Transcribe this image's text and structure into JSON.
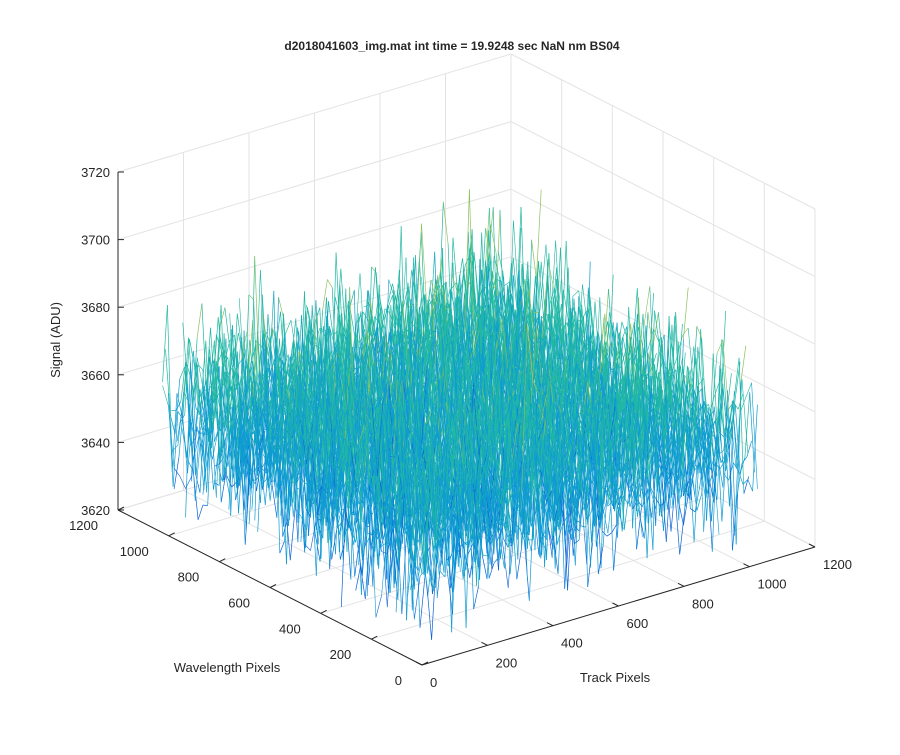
{
  "chart_data": {
    "type": "surface-3d",
    "title": "d2018041603_img.mat int time = 19.9248 sec  NaN nm BS04",
    "xlabel": "Track Pixels",
    "ylabel": "Wavelength Pixels",
    "zlabel": "Signal (ADU)",
    "xlim": [
      0,
      1200
    ],
    "ylim": [
      0,
      1200
    ],
    "zlim": [
      3620,
      3720
    ],
    "x_ticks": [
      "0",
      "200",
      "400",
      "600",
      "800",
      "1000",
      "1200"
    ],
    "y_ticks": [
      "0",
      "200",
      "400",
      "600",
      "800",
      "1000",
      "1200"
    ],
    "z_ticks": [
      "3620",
      "3640",
      "3660",
      "3680",
      "3700",
      "3720"
    ],
    "grid": true,
    "data_extent": {
      "x": [
        0,
        1024
      ],
      "y": [
        0,
        1024
      ]
    },
    "signal_summary": {
      "mean": 3657,
      "min": 3625,
      "max": 3712
    },
    "colormap": [
      "#0c62d8",
      "#0f9bd2",
      "#22b8a4",
      "#8cc15c",
      "#e6bd3c"
    ]
  }
}
